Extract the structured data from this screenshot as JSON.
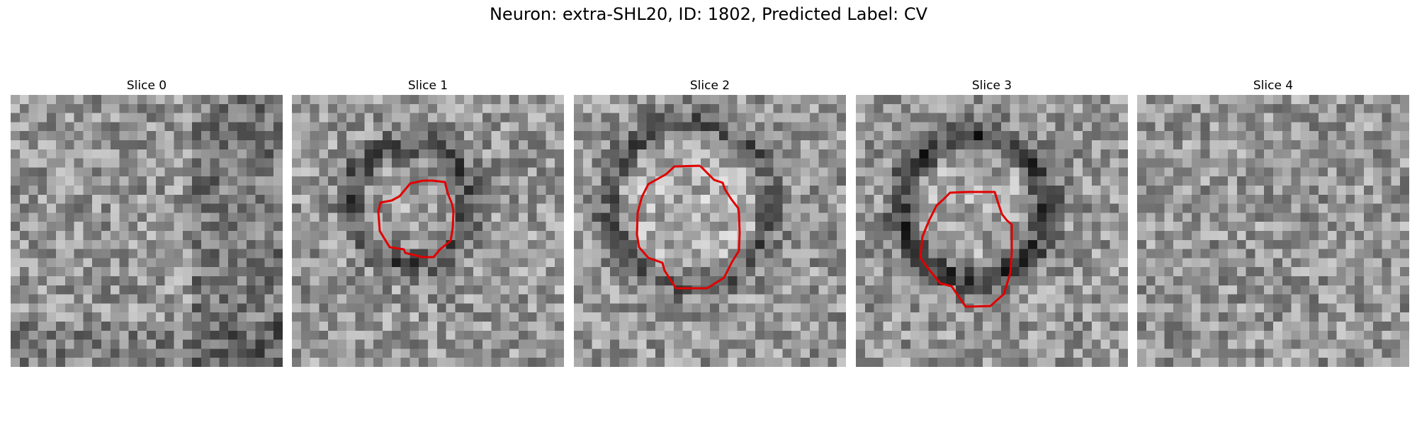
{
  "figure": {
    "title": "Neuron: extra-SHL20, ID: 1802, Predicted Label: CV",
    "contour_color": "#e00000"
  },
  "panels": [
    {
      "title": "Slice 0",
      "image": "grayscale-noise-slice",
      "has_contour": false
    },
    {
      "title": "Slice 1",
      "image": "grayscale-cell-slice",
      "has_contour": true
    },
    {
      "title": "Slice 2",
      "image": "grayscale-cell-slice",
      "has_contour": true
    },
    {
      "title": "Slice 3",
      "image": "grayscale-cell-slice",
      "has_contour": true
    },
    {
      "title": "Slice 4",
      "image": "grayscale-noise-slice",
      "has_contour": false
    }
  ]
}
